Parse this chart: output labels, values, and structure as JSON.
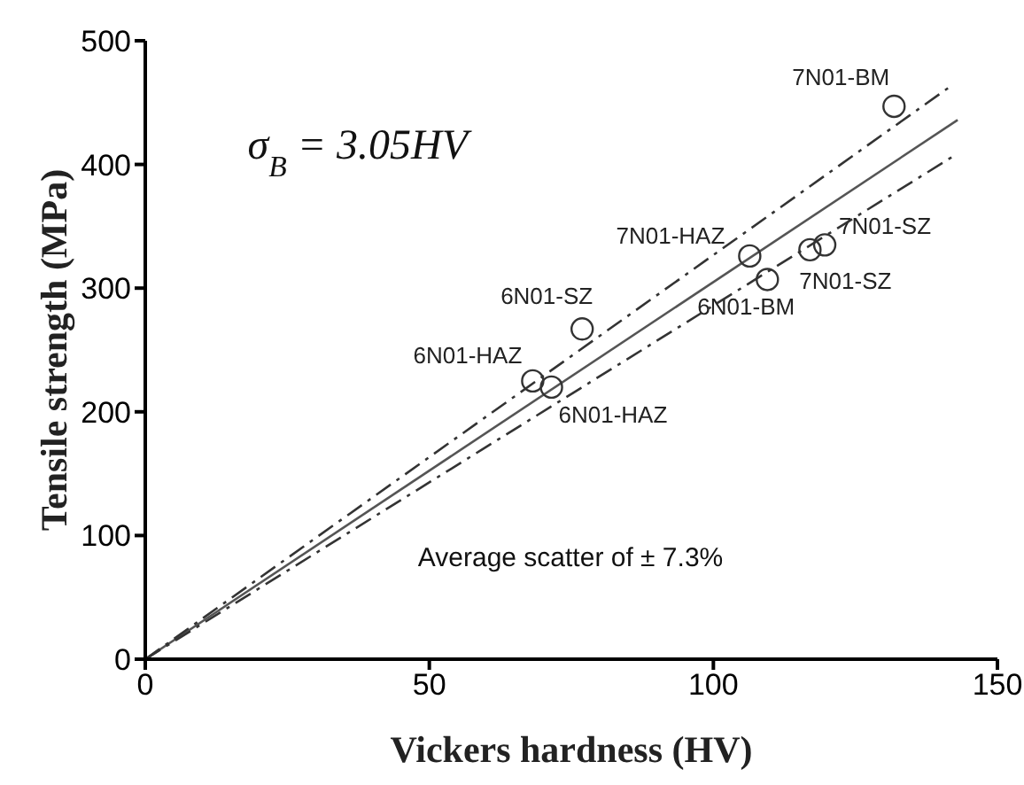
{
  "chart_data": {
    "type": "scatter",
    "xlabel": "Vickers hardness (HV)",
    "ylabel": "Tensile strength (MPa)",
    "xlim": [
      0,
      150
    ],
    "xticks": [
      0,
      50,
      100,
      150
    ],
    "ylim": [
      0,
      500
    ],
    "yticks": [
      0,
      100,
      200,
      300,
      400,
      500
    ],
    "grid": false,
    "legend": false,
    "series": [
      {
        "marker": "circle",
        "color": "#333333",
        "x": [
          131.8,
          106.4,
          119.6,
          117,
          109.5,
          76.9,
          68.2,
          71.5
        ],
        "values": [
          447,
          326,
          335,
          331,
          307,
          267,
          225,
          220
        ]
      },
      {
        "type": "line",
        "marker": "none",
        "color": "#555555",
        "line_style": "solid",
        "x": [
          0,
          143
        ],
        "values": [
          0,
          436
        ]
      },
      {
        "type": "line",
        "color": "#333333",
        "line_style": "dashed",
        "x": [
          0,
          142
        ],
        "values": [
          0,
          464
        ],
        "marker": "none"
      },
      {
        "type": "line",
        "color": "#333333",
        "line_style": "dashed",
        "x": [
          0,
          142
        ],
        "values": [
          0,
          406
        ],
        "marker": "none"
      }
    ],
    "annotations": [
      "σ$_{B}$ = 3.05HV",
      "Average scatter of ± 7.3%",
      {
        "text": "7N01-BM",
        "x": 131.8,
        "y": 447
      },
      {
        "text": "7N01-HAZ",
        "x": 106.4,
        "y": 326
      },
      {
        "text": "7N01-SZ",
        "x": 119.6,
        "y": 335
      },
      {
        "text": "7N01-SZ",
        "x": 117,
        "y": 331
      },
      {
        "text": "6N01-BM",
        "x": 109.5,
        "y": 307
      },
      {
        "text": "6N01-SZ",
        "x": 76.9,
        "y": 267
      },
      {
        "text": "6N01-HAZ",
        "x": 68.2,
        "y": 225
      },
      {
        "text": "6N01-HAZ",
        "x": 71.5,
        "y": 220
      }
    ]
  }
}
